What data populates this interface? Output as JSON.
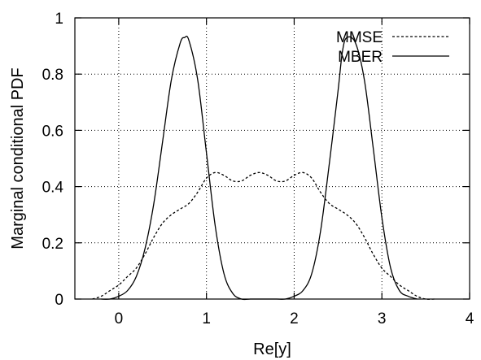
{
  "chart_data": {
    "type": "line",
    "title": "",
    "xlabel": "Re[y]",
    "ylabel": "Marginal conditional PDF",
    "xlim": [
      -0.5,
      4
    ],
    "ylim": [
      0,
      1
    ],
    "xticks": [
      0,
      1,
      2,
      3,
      4
    ],
    "yticks": [
      0,
      0.2,
      0.4,
      0.6,
      0.8,
      1
    ],
    "x_tick_labels": [
      "0",
      "1",
      "2",
      "3",
      "4"
    ],
    "y_tick_labels": [
      "0",
      "0.2",
      "0.4",
      "0.6",
      "0.8",
      "1"
    ],
    "grid": true,
    "legend_position": "top-right",
    "series": [
      {
        "name": "MMSE",
        "style": "dashed",
        "color": "#000000",
        "x": [
          -0.3,
          -0.2,
          -0.1,
          0.0,
          0.1,
          0.2,
          0.3,
          0.4,
          0.5,
          0.6,
          0.7,
          0.8,
          0.9,
          1.0,
          1.1,
          1.2,
          1.3,
          1.4,
          1.5,
          1.6,
          1.7,
          1.8,
          1.9,
          2.0,
          2.1,
          2.2,
          2.3,
          2.4,
          2.5,
          2.6,
          2.7,
          2.8,
          2.9,
          3.0,
          3.1,
          3.2,
          3.3,
          3.4,
          3.5,
          3.6
        ],
        "y": [
          0.0,
          0.01,
          0.03,
          0.05,
          0.08,
          0.11,
          0.16,
          0.22,
          0.27,
          0.3,
          0.32,
          0.34,
          0.38,
          0.43,
          0.45,
          0.44,
          0.42,
          0.42,
          0.44,
          0.45,
          0.44,
          0.42,
          0.42,
          0.44,
          0.45,
          0.43,
          0.38,
          0.34,
          0.32,
          0.3,
          0.27,
          0.22,
          0.16,
          0.11,
          0.08,
          0.05,
          0.03,
          0.01,
          0.0,
          0.0
        ]
      },
      {
        "name": "MBER",
        "style": "solid",
        "color": "#000000",
        "x": [
          -0.2,
          -0.1,
          0.0,
          0.1,
          0.2,
          0.3,
          0.4,
          0.5,
          0.6,
          0.7,
          0.75,
          0.8,
          0.9,
          1.0,
          1.1,
          1.2,
          1.3,
          1.4,
          1.5,
          1.6,
          1.7,
          1.8,
          1.9,
          2.0,
          2.1,
          2.2,
          2.3,
          2.4,
          2.5,
          2.55,
          2.6,
          2.7,
          2.8,
          2.9,
          3.0,
          3.1,
          3.2,
          3.3,
          3.4
        ],
        "y": [
          0.0,
          0.0,
          0.01,
          0.03,
          0.08,
          0.18,
          0.34,
          0.56,
          0.78,
          0.91,
          0.93,
          0.92,
          0.78,
          0.52,
          0.26,
          0.09,
          0.02,
          0.0,
          0.0,
          0.0,
          0.0,
          0.0,
          0.0,
          0.01,
          0.03,
          0.09,
          0.24,
          0.48,
          0.74,
          0.88,
          0.93,
          0.91,
          0.78,
          0.54,
          0.29,
          0.11,
          0.03,
          0.01,
          0.0
        ]
      }
    ]
  }
}
